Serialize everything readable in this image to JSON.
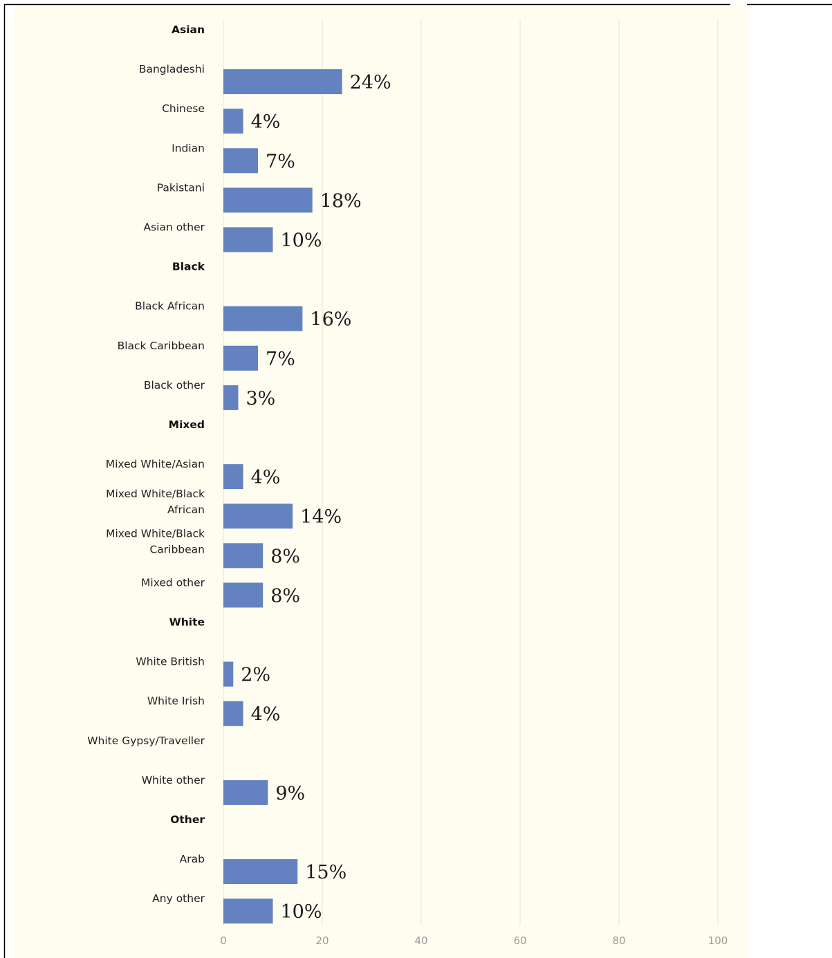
{
  "chart_data": {
    "type": "bar",
    "orientation": "horizontal",
    "categories": [
      "Asian",
      "Bangladeshi",
      "Chinese",
      "Indian",
      "Pakistani",
      "Asian other",
      "Black",
      "Black African",
      "Black Caribbean",
      "Black other",
      "Mixed",
      "Mixed White/Asian",
      "Mixed White/Black African",
      "Mixed White/Black Caribbean",
      "Mixed other",
      "White",
      "White British",
      "White Irish",
      "White Gypsy/Traveller",
      "White other",
      "Other",
      "Arab",
      "Any other"
    ],
    "group_headers": [
      "Asian",
      "Black",
      "Mixed",
      "White",
      "Other"
    ],
    "values": [
      null,
      24,
      4,
      7,
      18,
      10,
      null,
      16,
      7,
      3,
      null,
      4,
      14,
      8,
      8,
      null,
      2,
      4,
      null,
      9,
      null,
      15,
      10
    ],
    "value_labels": [
      null,
      "24%",
      "4%",
      "7%",
      "18%",
      "10%",
      null,
      "16%",
      "7%",
      "3%",
      null,
      "4%",
      "14%",
      "8%",
      "8%",
      null,
      "2%",
      "4%",
      null,
      "9%",
      null,
      "15%",
      "10%"
    ],
    "xlim": [
      0,
      100
    ],
    "xticks": [
      0,
      20,
      40,
      60,
      80,
      100
    ],
    "grid": true,
    "legend": "none",
    "title": "",
    "xlabel": "",
    "ylabel": ""
  },
  "colors": {
    "bar": "#6482bf",
    "plot_background": "#fffdf0",
    "gridline": "#ece8d6",
    "frame": "#000000"
  }
}
